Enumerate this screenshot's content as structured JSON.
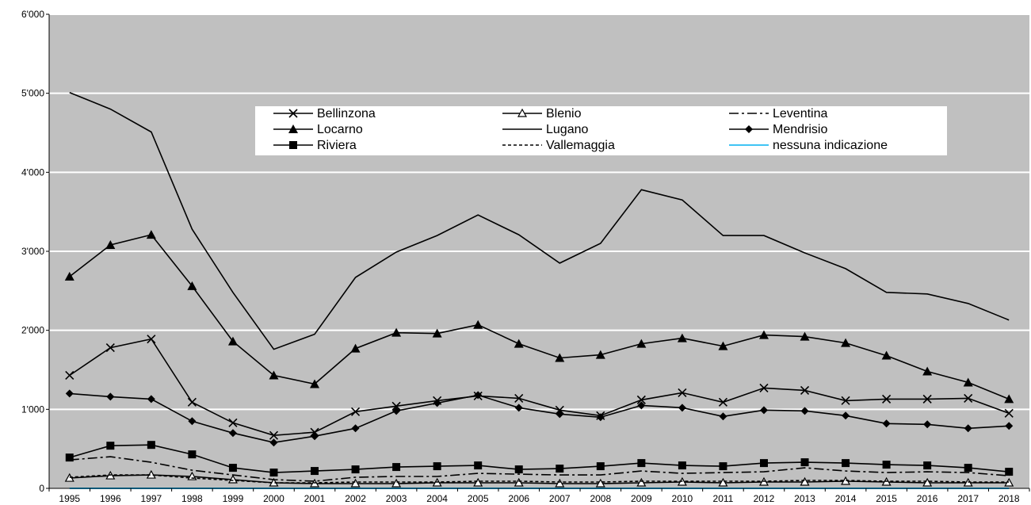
{
  "chart_data": {
    "type": "line",
    "title": "",
    "xlabel": "",
    "ylabel": "",
    "ylim": [
      0,
      6000
    ],
    "y_ticks": [
      "0",
      "1'000",
      "2'000",
      "3'000",
      "4'000",
      "5'000",
      "6'000"
    ],
    "y_tick_values": [
      0,
      1000,
      2000,
      3000,
      4000,
      5000,
      6000
    ],
    "categories": [
      "1995",
      "1996",
      "1997",
      "1998",
      "1999",
      "2000",
      "2001",
      "2002",
      "2003",
      "2004",
      "2005",
      "2006",
      "2007",
      "2008",
      "2009",
      "2010",
      "2011",
      "2012",
      "2013",
      "2014",
      "2015",
      "2016",
      "2017",
      "2018"
    ],
    "grid": "horizontal",
    "plot_background": "#c0c0c0",
    "legend_placement": "top-center",
    "series": [
      {
        "name": "Bellinzona",
        "marker": "x",
        "dash": "",
        "color": "#000000",
        "values": [
          1430,
          1780,
          1890,
          1090,
          830,
          670,
          710,
          970,
          1040,
          1110,
          1170,
          1140,
          990,
          920,
          1120,
          1210,
          1090,
          1270,
          1240,
          1110,
          1130,
          1130,
          1140,
          950
        ]
      },
      {
        "name": "Blenio",
        "marker": "open-triangle",
        "dash": "",
        "color": "#000000",
        "values": [
          130,
          160,
          170,
          150,
          110,
          70,
          60,
          60,
          60,
          70,
          70,
          70,
          60,
          60,
          70,
          80,
          70,
          80,
          80,
          90,
          80,
          70,
          70,
          70
        ]
      },
      {
        "name": "Leventina",
        "marker": "none",
        "dash": "12,4,3,4",
        "color": "#000000",
        "values": [
          360,
          400,
          330,
          230,
          170,
          110,
          90,
          140,
          150,
          150,
          190,
          180,
          170,
          170,
          220,
          190,
          200,
          210,
          260,
          220,
          200,
          210,
          200,
          160
        ]
      },
      {
        "name": "Locarno",
        "marker": "filled-triangle",
        "dash": "",
        "color": "#000000",
        "values": [
          2680,
          3080,
          3210,
          2560,
          1860,
          1430,
          1320,
          1770,
          1970,
          1960,
          2070,
          1830,
          1650,
          1690,
          1830,
          1900,
          1800,
          1940,
          1920,
          1840,
          1680,
          1480,
          1340,
          1130
        ]
      },
      {
        "name": "Lugano",
        "marker": "none",
        "dash": "",
        "color": "#000000",
        "values": [
          5010,
          4800,
          4510,
          3280,
          2480,
          1760,
          1950,
          2670,
          2990,
          3200,
          3460,
          3210,
          2850,
          3100,
          3780,
          3650,
          3200,
          3200,
          2980,
          2780,
          2480,
          2460,
          2340,
          2130
        ]
      },
      {
        "name": "Mendrisio",
        "marker": "diamond",
        "dash": "",
        "color": "#000000",
        "values": [
          1200,
          1160,
          1130,
          850,
          700,
          580,
          660,
          760,
          980,
          1080,
          1180,
          1020,
          940,
          900,
          1050,
          1020,
          910,
          990,
          980,
          920,
          820,
          810,
          760,
          790
        ]
      },
      {
        "name": "Riviera",
        "marker": "square",
        "dash": "",
        "color": "#000000",
        "values": [
          390,
          540,
          550,
          430,
          260,
          200,
          220,
          240,
          270,
          280,
          290,
          240,
          250,
          280,
          320,
          290,
          280,
          320,
          330,
          320,
          300,
          290,
          260,
          210
        ]
      },
      {
        "name": "Vallemaggia",
        "marker": "none",
        "dash": "4,3",
        "color": "#000000",
        "values": [
          140,
          170,
          170,
          130,
          100,
          70,
          70,
          80,
          80,
          80,
          90,
          90,
          80,
          80,
          90,
          90,
          90,
          90,
          100,
          100,
          90,
          90,
          80,
          80
        ]
      },
      {
        "name": "nessuna indicazione",
        "marker": "none",
        "dash": "",
        "color": "#00b0f0",
        "values": [
          0,
          0,
          0,
          0,
          0,
          0,
          0,
          0,
          0,
          0,
          0,
          0,
          0,
          0,
          0,
          0,
          0,
          0,
          0,
          0,
          0,
          0,
          0,
          0
        ]
      }
    ]
  }
}
